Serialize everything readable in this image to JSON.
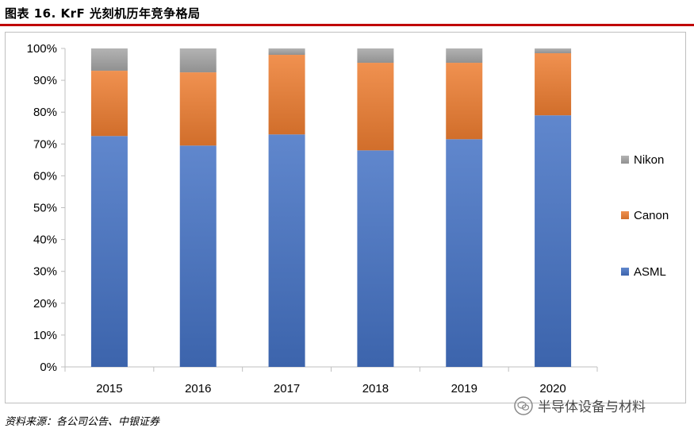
{
  "title": "图表 16. KrF 光刻机历年竞争格局",
  "source": "资料来源：各公司公告、中银证券",
  "watermark": "半导体设备与材料",
  "chart_data": {
    "type": "bar",
    "stacked": true,
    "categories": [
      "2015",
      "2016",
      "2017",
      "2018",
      "2019",
      "2020"
    ],
    "series": [
      {
        "name": "ASML",
        "values": [
          72.5,
          69.5,
          73.0,
          68.0,
          71.5,
          79.0
        ],
        "color": "#4472c4"
      },
      {
        "name": "Canon",
        "values": [
          20.5,
          23.0,
          25.0,
          27.5,
          24.0,
          19.5
        ],
        "color": "#ed7d31"
      },
      {
        "name": "Nikon",
        "values": [
          7.0,
          7.5,
          2.0,
          4.5,
          4.5,
          1.5
        ],
        "color": "#a5a5a5"
      }
    ],
    "ylim": [
      0,
      100
    ],
    "yticks": [
      "0%",
      "10%",
      "20%",
      "30%",
      "40%",
      "50%",
      "60%",
      "70%",
      "80%",
      "90%",
      "100%"
    ],
    "grid": false,
    "legend_position": "right",
    "legend_order": [
      "Nikon",
      "Canon",
      "ASML"
    ]
  }
}
